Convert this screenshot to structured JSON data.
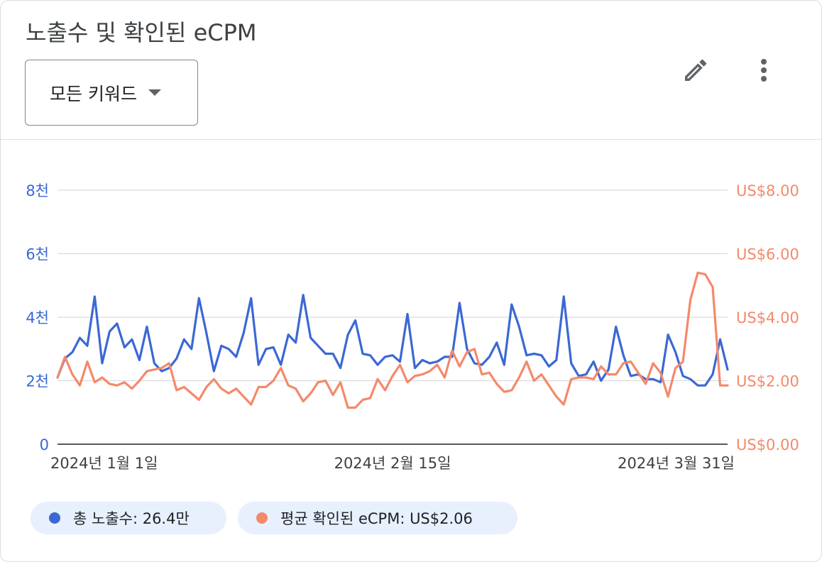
{
  "card": {
    "title": "노출수 및 확인된 eCPM",
    "dropdown_label": "모든 키워드",
    "icons": {
      "edit": "pencil-icon",
      "more": "more-vert-icon",
      "dropdown": "caret-down-icon"
    }
  },
  "colors": {
    "impressions": "#3b68d4",
    "ecpm": "#f4896b",
    "grid": "#dadce0",
    "axis": "#202124",
    "legend_bg": "#e8f0fe"
  },
  "legend": [
    {
      "label": "총 노출수: 26.4만",
      "color": "#3b68d4"
    },
    {
      "label": "평균 확인된 eCPM: US$2.06",
      "color": "#f4896b"
    }
  ],
  "chart_data": {
    "type": "line",
    "grid": true,
    "x_start": "2024-01-01",
    "x_ticks": [
      "2024년 1월 1일",
      "2024년 2월 15일",
      "2024년 3월 31일"
    ],
    "y_left": {
      "ticks": [
        "0",
        "2천",
        "4천",
        "6천",
        "8천"
      ],
      "range": [
        0,
        8000
      ]
    },
    "y_right": {
      "ticks": [
        "US$0.00",
        "US$2.00",
        "US$4.00",
        "US$6.00",
        "US$8.00"
      ],
      "range": [
        0,
        8
      ]
    },
    "series": [
      {
        "name": "총 노출수",
        "axis": "left",
        "values": [
          2100,
          2700,
          2900,
          3350,
          3100,
          4650,
          2550,
          3550,
          3800,
          3050,
          3300,
          2650,
          3700,
          2550,
          2300,
          2400,
          2700,
          3300,
          3000,
          4600,
          3500,
          2300,
          3100,
          3000,
          2750,
          3500,
          4600,
          2500,
          3000,
          3050,
          2500,
          3450,
          3200,
          4700,
          3350,
          3100,
          2850,
          2850,
          2400,
          3450,
          3900,
          2850,
          2800,
          2500,
          2750,
          2800,
          2600,
          4100,
          2400,
          2650,
          2550,
          2600,
          2750,
          2750,
          4450,
          3000,
          2550,
          2500,
          2750,
          3200,
          2500,
          4400,
          3700,
          2800,
          2850,
          2800,
          2450,
          2650,
          4650,
          2550,
          2150,
          2200,
          2600,
          2000,
          2350,
          3700,
          2800,
          2150,
          2200,
          2050,
          2050,
          1950,
          3450,
          2900,
          2150,
          2050,
          1850,
          1850,
          2200,
          3300,
          2350
        ]
      },
      {
        "name": "평균 확인된 eCPM",
        "axis": "right",
        "values": [
          2.1,
          2.75,
          2.2,
          1.85,
          2.6,
          1.95,
          2.1,
          1.9,
          1.85,
          1.95,
          1.75,
          2.0,
          2.3,
          2.35,
          2.4,
          2.55,
          1.7,
          1.8,
          1.6,
          1.4,
          1.8,
          2.05,
          1.75,
          1.6,
          1.75,
          1.5,
          1.25,
          1.8,
          1.8,
          2.0,
          2.4,
          1.85,
          1.75,
          1.35,
          1.6,
          1.95,
          2.0,
          1.55,
          1.95,
          1.15,
          1.15,
          1.4,
          1.45,
          2.05,
          1.7,
          2.15,
          2.5,
          1.95,
          2.15,
          2.2,
          2.3,
          2.5,
          2.1,
          2.95,
          2.45,
          2.9,
          3.0,
          2.2,
          2.25,
          1.9,
          1.65,
          1.7,
          2.1,
          2.6,
          2.0,
          2.2,
          1.85,
          1.5,
          1.25,
          2.05,
          2.1,
          2.1,
          2.05,
          2.45,
          2.2,
          2.2,
          2.55,
          2.6,
          2.25,
          1.9,
          2.55,
          2.25,
          1.5,
          2.4,
          2.6,
          4.55,
          5.4,
          5.35,
          4.95,
          1.85,
          1.85
        ]
      }
    ]
  }
}
